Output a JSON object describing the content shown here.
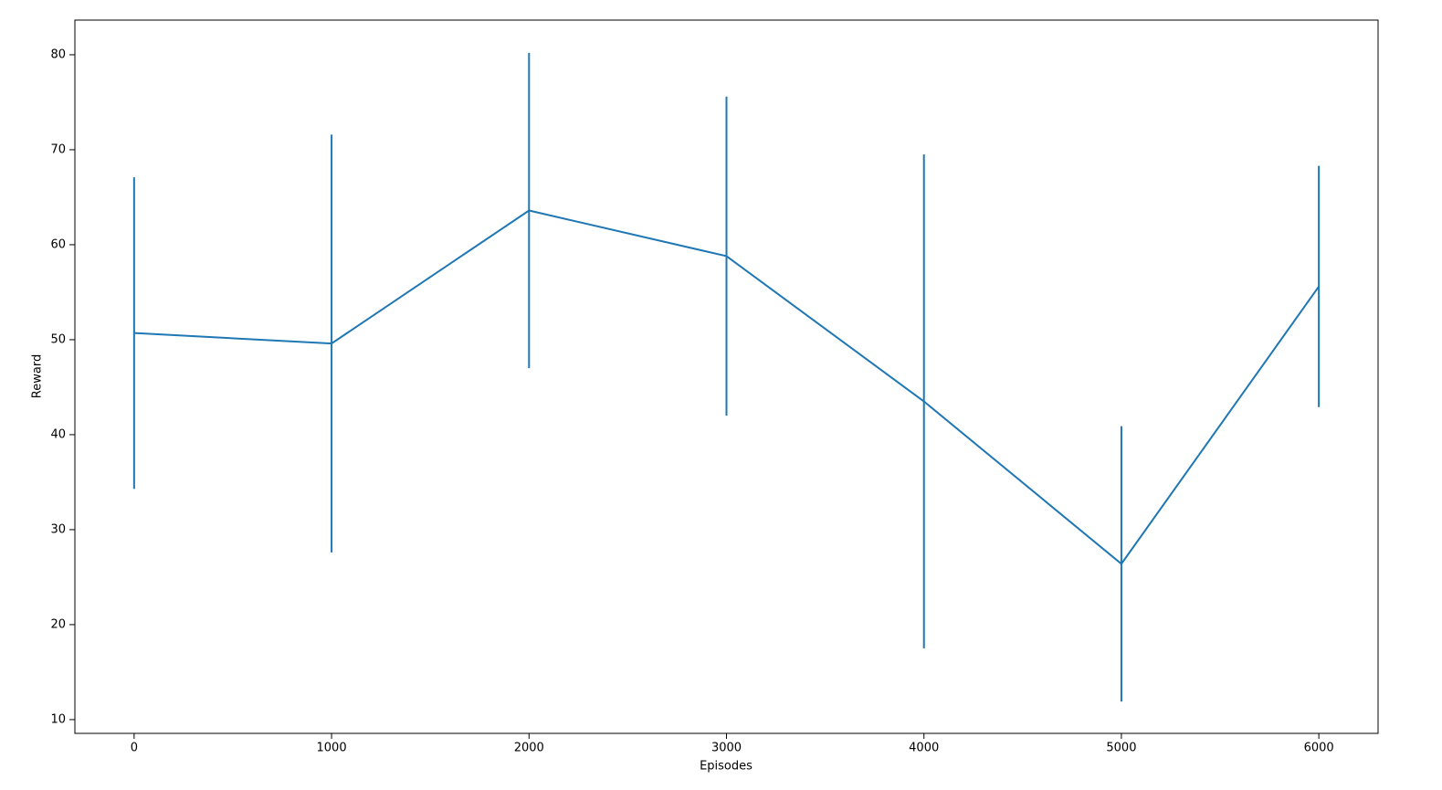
{
  "chart_data": {
    "type": "errorbar-line",
    "x_label": "Episodes",
    "y_label": "Reward",
    "x": [
      0,
      1000,
      2000,
      3000,
      4000,
      5000,
      6000
    ],
    "series": [
      {
        "color": "#1f77b4",
        "values": [
          50.7,
          49.6,
          63.6,
          58.8,
          43.5,
          26.4,
          55.6
        ],
        "errors": [
          16.4,
          22.0,
          16.6,
          16.8,
          26.0,
          14.5,
          12.7
        ]
      }
    ],
    "xlim": [
      -300,
      6300
    ],
    "xticks": [
      0,
      1000,
      2000,
      3000,
      4000,
      5000,
      6000
    ],
    "ylim": [
      8.55,
      83.65
    ],
    "yticks": [
      10,
      20,
      30,
      40,
      50,
      60,
      70,
      80
    ],
    "grid": false
  }
}
